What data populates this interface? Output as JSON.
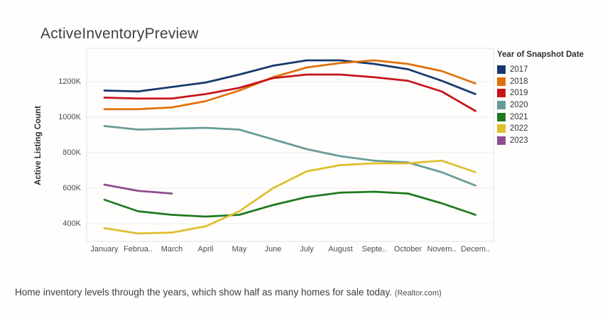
{
  "title": "ActiveInventoryPreview",
  "legend": {
    "title": "Year of Snapshot Date"
  },
  "caption": {
    "text": "Home inventory levels through the years, which show half as many homes for sale today.",
    "source": "(Realtor.com)"
  },
  "colors": {
    "grid": "#ececec",
    "plot_border": "#e2e2e2",
    "axis_text": "#4b4b4b"
  },
  "chart_data": {
    "type": "line",
    "title": "ActiveInventoryPreview",
    "xlabel": "",
    "ylabel": "Active Listing Count",
    "x_tick_labels": [
      "January",
      "Februa..",
      "March",
      "April",
      "May",
      "June",
      "July",
      "August",
      "Septe..",
      "October",
      "Novem..",
      "Decem.."
    ],
    "y_tick_labels": [
      "400K",
      "600K",
      "800K",
      "1000K",
      "1200K"
    ],
    "y_ticks_k": [
      400,
      600,
      800,
      1000,
      1200
    ],
    "ylim_k": [
      300,
      1388
    ],
    "unit": "thousands of active listings",
    "grid": "horizontal",
    "legend_position": "right",
    "series": [
      {
        "name": "2017",
        "color": "#17386e",
        "values_k": [
          1150,
          1145,
          1170,
          1195,
          1240,
          1290,
          1320,
          1320,
          1300,
          1270,
          1205,
          1130
        ]
      },
      {
        "name": "2018",
        "color": "#de710c",
        "values_k": [
          1045,
          1045,
          1055,
          1090,
          1150,
          1225,
          1280,
          1305,
          1320,
          1300,
          1260,
          1190
        ]
      },
      {
        "name": "2019",
        "color": "#c6151b",
        "values_k": [
          1110,
          1105,
          1105,
          1130,
          1165,
          1220,
          1240,
          1240,
          1225,
          1205,
          1145,
          1035
        ]
      },
      {
        "name": "2020",
        "color": "#689c98",
        "values_k": [
          950,
          930,
          935,
          940,
          930,
          875,
          820,
          780,
          755,
          745,
          690,
          615
        ]
      },
      {
        "name": "2021",
        "color": "#1f7a1f",
        "values_k": [
          535,
          470,
          450,
          440,
          450,
          505,
          550,
          575,
          580,
          570,
          515,
          450
        ]
      },
      {
        "name": "2022",
        "color": "#dfbe2f",
        "values_k": [
          375,
          345,
          350,
          385,
          470,
          600,
          695,
          730,
          740,
          740,
          755,
          690
        ]
      },
      {
        "name": "2023",
        "color": "#8e4d90",
        "values_k": [
          620,
          585,
          570,
          null,
          null,
          null,
          null,
          null,
          null,
          null,
          null,
          null
        ]
      }
    ]
  }
}
